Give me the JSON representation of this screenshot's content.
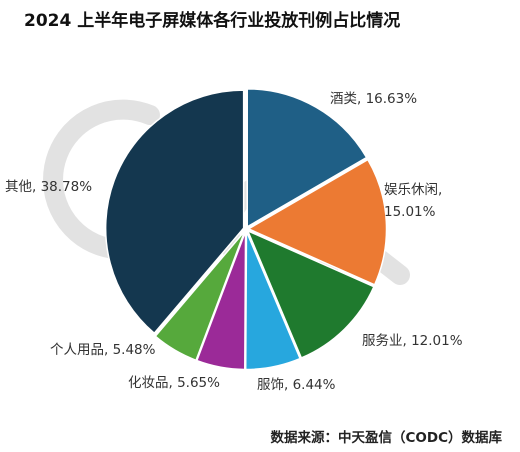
{
  "chart_data": {
    "type": "pie",
    "title": "2024 上半年电子屏媒体各行业投放刊例占比情况",
    "categories": [
      "酒类",
      "娱乐休闲",
      "服务业",
      "服饰",
      "化妆品",
      "个人用品",
      "其他"
    ],
    "values": [
      16.63,
      15.01,
      12.01,
      6.44,
      5.65,
      5.48,
      38.78
    ],
    "labels": [
      "酒类, 16.63%",
      "娱乐休闲,\n15.01%",
      "服务业, 12.01%",
      "服饰, 6.44%",
      "化妆品, 5.65%",
      "个人用品, 5.48%",
      "其他, 38.78%"
    ],
    "colors": [
      "#1f5f86",
      "#ec7a33",
      "#1f7a2e",
      "#27a7de",
      "#9b2a98",
      "#56a93c",
      "#14374f"
    ],
    "unit": "%"
  },
  "source": "数据来源：中天盈信（CODC）数据库"
}
